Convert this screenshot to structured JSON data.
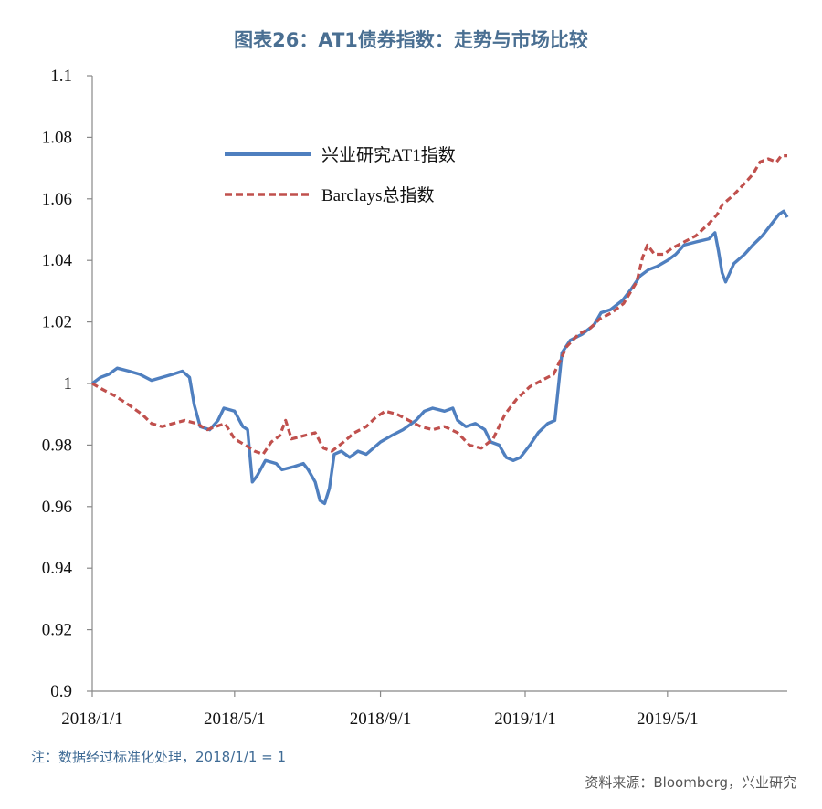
{
  "title": "图表26：AT1债券指数：走势与市场比较",
  "note": "注：数据经过标准化处理，2018/1/1 = 1",
  "source": "资料来源：Bloomberg，兴业研究",
  "chart_data": {
    "type": "line",
    "title": "图表26：AT1债券指数：走势与市场比较",
    "xlabel": "",
    "ylabel": "",
    "ylim": [
      0.9,
      1.1
    ],
    "yticks": [
      0.9,
      0.92,
      0.94,
      0.96,
      0.98,
      1,
      1.02,
      1.04,
      1.06,
      1.08,
      1.1
    ],
    "ytick_labels": [
      "0.9",
      "0.92",
      "0.94",
      "0.96",
      "0.98",
      "1",
      "1.02",
      "1.04",
      "1.06",
      "1.08",
      "1.1"
    ],
    "xlim": [
      "2018/1/1",
      "2019/8/10"
    ],
    "xticks": [
      "2018/1/1",
      "2018/5/1",
      "2018/9/1",
      "2019/1/1",
      "2019/5/1"
    ],
    "grid": false,
    "legend_position": "top-left",
    "series": [
      {
        "name": "兴业研究AT1指数",
        "color": "#4f7fbf",
        "style": "solid",
        "points": [
          [
            "2018/1/1",
            1.0
          ],
          [
            "2018/1/8",
            1.002
          ],
          [
            "2018/1/15",
            1.003
          ],
          [
            "2018/1/22",
            1.005
          ],
          [
            "2018/2/1",
            1.004
          ],
          [
            "2018/2/10",
            1.003
          ],
          [
            "2018/2/20",
            1.001
          ],
          [
            "2018/3/1",
            1.002
          ],
          [
            "2018/3/10",
            1.003
          ],
          [
            "2018/3/18",
            1.004
          ],
          [
            "2018/3/24",
            1.002
          ],
          [
            "2018/3/28",
            0.993
          ],
          [
            "2018/4/2",
            0.986
          ],
          [
            "2018/4/10",
            0.985
          ],
          [
            "2018/4/17",
            0.988
          ],
          [
            "2018/4/22",
            0.992
          ],
          [
            "2018/5/1",
            0.991
          ],
          [
            "2018/5/8",
            0.986
          ],
          [
            "2018/5/12",
            0.985
          ],
          [
            "2018/5/16",
            0.968
          ],
          [
            "2018/5/20",
            0.97
          ],
          [
            "2018/5/27",
            0.975
          ],
          [
            "2018/6/5",
            0.974
          ],
          [
            "2018/6/10",
            0.972
          ],
          [
            "2018/6/20",
            0.973
          ],
          [
            "2018/6/28",
            0.974
          ],
          [
            "2018/7/2",
            0.972
          ],
          [
            "2018/7/8",
            0.968
          ],
          [
            "2018/7/12",
            0.962
          ],
          [
            "2018/7/16",
            0.961
          ],
          [
            "2018/7/20",
            0.966
          ],
          [
            "2018/7/24",
            0.977
          ],
          [
            "2018/7/30",
            0.978
          ],
          [
            "2018/8/6",
            0.976
          ],
          [
            "2018/8/13",
            0.978
          ],
          [
            "2018/8/20",
            0.977
          ],
          [
            "2018/9/1",
            0.981
          ],
          [
            "2018/9/10",
            0.983
          ],
          [
            "2018/9/20",
            0.985
          ],
          [
            "2018/10/1",
            0.988
          ],
          [
            "2018/10/8",
            0.991
          ],
          [
            "2018/10/15",
            0.992
          ],
          [
            "2018/10/25",
            0.991
          ],
          [
            "2018/11/1",
            0.992
          ],
          [
            "2018/11/5",
            0.988
          ],
          [
            "2018/11/12",
            0.986
          ],
          [
            "2018/11/20",
            0.987
          ],
          [
            "2018/11/28",
            0.985
          ],
          [
            "2018/12/3",
            0.981
          ],
          [
            "2018/12/10",
            0.98
          ],
          [
            "2018/12/16",
            0.976
          ],
          [
            "2018/12/22",
            0.975
          ],
          [
            "2018/12/28",
            0.976
          ],
          [
            "2019/1/5",
            0.98
          ],
          [
            "2019/1/12",
            0.984
          ],
          [
            "2019/1/20",
            0.987
          ],
          [
            "2019/1/26",
            0.988
          ],
          [
            "2019/2/1",
            1.01
          ],
          [
            "2019/2/8",
            1.014
          ],
          [
            "2019/2/18",
            1.016
          ],
          [
            "2019/2/28",
            1.019
          ],
          [
            "2019/3/6",
            1.023
          ],
          [
            "2019/3/14",
            1.024
          ],
          [
            "2019/3/24",
            1.027
          ],
          [
            "2019/4/1",
            1.031
          ],
          [
            "2019/4/8",
            1.035
          ],
          [
            "2019/4/15",
            1.037
          ],
          [
            "2019/4/22",
            1.038
          ],
          [
            "2019/5/1",
            1.04
          ],
          [
            "2019/5/8",
            1.042
          ],
          [
            "2019/5/15",
            1.045
          ],
          [
            "2019/5/25",
            1.046
          ],
          [
            "2019/6/5",
            1.047
          ],
          [
            "2019/6/10",
            1.049
          ],
          [
            "2019/6/13",
            1.043
          ],
          [
            "2019/6/16",
            1.036
          ],
          [
            "2019/6/19",
            1.033
          ],
          [
            "2019/6/26",
            1.039
          ],
          [
            "2019/7/5",
            1.042
          ],
          [
            "2019/7/12",
            1.045
          ],
          [
            "2019/7/20",
            1.048
          ],
          [
            "2019/7/28",
            1.052
          ],
          [
            "2019/8/3",
            1.055
          ],
          [
            "2019/8/7",
            1.056
          ],
          [
            "2019/8/10",
            1.054
          ]
        ]
      },
      {
        "name": "Barclays总指数",
        "color": "#c0504d",
        "style": "dashed",
        "points": [
          [
            "2018/1/1",
            1.0
          ],
          [
            "2018/1/10",
            0.998
          ],
          [
            "2018/1/20",
            0.996
          ],
          [
            "2018/2/1",
            0.993
          ],
          [
            "2018/2/12",
            0.99
          ],
          [
            "2018/2/20",
            0.987
          ],
          [
            "2018/3/1",
            0.986
          ],
          [
            "2018/3/10",
            0.987
          ],
          [
            "2018/3/20",
            0.988
          ],
          [
            "2018/3/30",
            0.987
          ],
          [
            "2018/4/8",
            0.985
          ],
          [
            "2018/4/15",
            0.986
          ],
          [
            "2018/4/23",
            0.987
          ],
          [
            "2018/5/1",
            0.982
          ],
          [
            "2018/5/10",
            0.98
          ],
          [
            "2018/5/18",
            0.978
          ],
          [
            "2018/5/25",
            0.977
          ],
          [
            "2018/6/1",
            0.981
          ],
          [
            "2018/6/8",
            0.983
          ],
          [
            "2018/6/13",
            0.988
          ],
          [
            "2018/6/18",
            0.982
          ],
          [
            "2018/6/28",
            0.983
          ],
          [
            "2018/7/8",
            0.984
          ],
          [
            "2018/7/15",
            0.979
          ],
          [
            "2018/7/22",
            0.978
          ],
          [
            "2018/8/1",
            0.981
          ],
          [
            "2018/8/10",
            0.984
          ],
          [
            "2018/8/20",
            0.986
          ],
          [
            "2018/8/28",
            0.989
          ],
          [
            "2018/9/5",
            0.991
          ],
          [
            "2018/9/15",
            0.99
          ],
          [
            "2018/9/25",
            0.988
          ],
          [
            "2018/10/5",
            0.986
          ],
          [
            "2018/10/15",
            0.985
          ],
          [
            "2018/10/25",
            0.986
          ],
          [
            "2018/11/5",
            0.984
          ],
          [
            "2018/11/15",
            0.98
          ],
          [
            "2018/11/25",
            0.979
          ],
          [
            "2018/12/5",
            0.982
          ],
          [
            "2018/12/15",
            0.99
          ],
          [
            "2018/12/25",
            0.995
          ],
          [
            "2019/1/5",
            0.999
          ],
          [
            "2019/1/15",
            1.001
          ],
          [
            "2019/1/25",
            1.003
          ],
          [
            "2019/2/5",
            1.012
          ],
          [
            "2019/2/15",
            1.016
          ],
          [
            "2019/2/25",
            1.018
          ],
          [
            "2019/3/5",
            1.021
          ],
          [
            "2019/3/15",
            1.023
          ],
          [
            "2019/3/25",
            1.026
          ],
          [
            "2019/4/5",
            1.033
          ],
          [
            "2019/4/10",
            1.041
          ],
          [
            "2019/4/14",
            1.045
          ],
          [
            "2019/4/20",
            1.042
          ],
          [
            "2019/4/28",
            1.042
          ],
          [
            "2019/5/5",
            1.044
          ],
          [
            "2019/5/15",
            1.046
          ],
          [
            "2019/5/25",
            1.048
          ],
          [
            "2019/6/5",
            1.052
          ],
          [
            "2019/6/12",
            1.055
          ],
          [
            "2019/6/16",
            1.058
          ],
          [
            "2019/6/25",
            1.061
          ],
          [
            "2019/7/5",
            1.065
          ],
          [
            "2019/7/12",
            1.068
          ],
          [
            "2019/7/18",
            1.072
          ],
          [
            "2019/7/25",
            1.073
          ],
          [
            "2019/8/1",
            1.072
          ],
          [
            "2019/8/5",
            1.074
          ],
          [
            "2019/8/10",
            1.074
          ]
        ]
      }
    ]
  }
}
